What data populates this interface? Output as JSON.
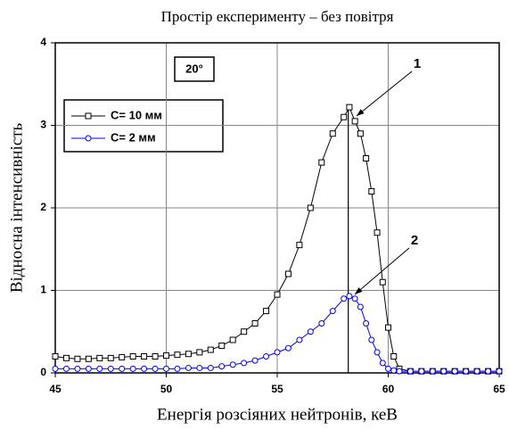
{
  "chart_data": {
    "type": "line",
    "title": "Простір експерименту – без повітря",
    "xlabel": "Енергія розсіяних нейтронів, кеВ",
    "ylabel": "Відносна інтенсивність",
    "xlim": [
      45,
      65
    ],
    "ylim": [
      0,
      4
    ],
    "xticks": [
      45,
      50,
      55,
      60,
      65
    ],
    "yticks": [
      0,
      1,
      2,
      3,
      4
    ],
    "grid": true,
    "legend": "upper left",
    "x": [
      45,
      45.5,
      46,
      46.5,
      47,
      47.5,
      48,
      48.5,
      49,
      49.5,
      50,
      50.5,
      51,
      51.5,
      52,
      52.5,
      53,
      53.5,
      54,
      54.5,
      55,
      55.5,
      56,
      56.5,
      57,
      57.5,
      58,
      58.25,
      58.5,
      58.75,
      59,
      59.25,
      59.5,
      59.75,
      60,
      60.25,
      60.5,
      61,
      61.5,
      62,
      62.5,
      63,
      63.5,
      64,
      64.5,
      65
    ],
    "series": [
      {
        "name": "C= 10 мм",
        "color": "#000000",
        "marker": "square",
        "values": [
          0.2,
          0.18,
          0.17,
          0.17,
          0.18,
          0.18,
          0.19,
          0.2,
          0.2,
          0.2,
          0.21,
          0.22,
          0.23,
          0.25,
          0.28,
          0.33,
          0.4,
          0.5,
          0.6,
          0.75,
          0.95,
          1.2,
          1.55,
          2.0,
          2.55,
          2.9,
          3.1,
          3.22,
          3.05,
          2.9,
          2.6,
          2.2,
          1.7,
          1.1,
          0.55,
          0.2,
          0.05,
          0.02,
          0.02,
          0.02,
          0.02,
          0.02,
          0.02,
          0.02,
          0.02,
          0.02
        ]
      },
      {
        "name": "C= 2 мм",
        "color": "#0000ff",
        "marker": "circle",
        "values": [
          0.05,
          0.05,
          0.05,
          0.05,
          0.05,
          0.05,
          0.05,
          0.05,
          0.05,
          0.05,
          0.05,
          0.05,
          0.06,
          0.06,
          0.06,
          0.08,
          0.1,
          0.12,
          0.15,
          0.2,
          0.25,
          0.3,
          0.4,
          0.5,
          0.6,
          0.75,
          0.9,
          0.93,
          0.9,
          0.8,
          0.6,
          0.4,
          0.25,
          0.12,
          0.05,
          0.03,
          0.02,
          0.02,
          0.02,
          0.02,
          0.02,
          0.02,
          0.02,
          0.02,
          0.02,
          0.02
        ]
      }
    ],
    "reference_line_x": 58.2,
    "annotations": [
      "1",
      "2"
    ],
    "angle_label": "20°"
  }
}
